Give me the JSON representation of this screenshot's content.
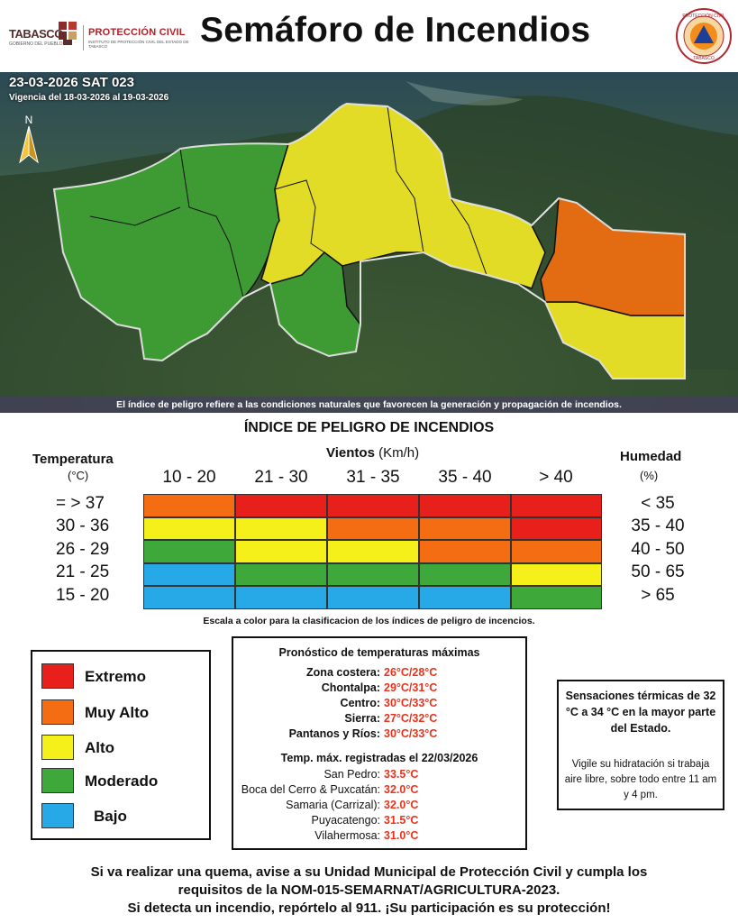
{
  "header": {
    "tabasco_logo": "TABASCO",
    "tabasco_sub": "GOBIERNO DEL PUEBLO",
    "pc_logo": "PROTECCIÓN CIVIL",
    "pc_sub": "INSTITUTO DE PROTECCIÓN CIVIL DEL ESTADO DE TABASCO",
    "title": "Semáforo de Incendios",
    "seal_text": "INSTITUTO DE PROTECCIÓN CIVIL · TABASCO"
  },
  "map": {
    "date_code": "23-03-2026 SAT 023",
    "validity": "Vigencia del 18-03-2026 al 19-03-2026",
    "north": "N",
    "note": "El índice de peligro refiere a las condiciones naturales que favorecen la generación y propagación de incendios."
  },
  "index": {
    "title": "ÍNDICE DE PELIGRO DE INCENDIOS",
    "temp_head": "Temperatura",
    "temp_unit": "(°C)",
    "winds_head_bold": "Vientos",
    "winds_head_unit": "(Km/h)",
    "hum_head": "Humedad",
    "hum_unit": "(%)",
    "wind_cols": [
      "10 - 20",
      "21 - 30",
      "31 - 35",
      "35 - 40",
      "> 40"
    ],
    "rows": [
      {
        "temp": "= > 37",
        "hum": "< 35",
        "cells": [
          "orange",
          "red",
          "red",
          "red",
          "red"
        ]
      },
      {
        "temp": "30 - 36",
        "hum": "35 - 40",
        "cells": [
          "yellow",
          "yellow",
          "orange",
          "orange",
          "red"
        ]
      },
      {
        "temp": "26 - 29",
        "hum": "40 - 50",
        "cells": [
          "green",
          "yellow",
          "yellow",
          "orange",
          "orange"
        ]
      },
      {
        "temp": "21 - 25",
        "hum": "50 - 65",
        "cells": [
          "blue",
          "green",
          "green",
          "green",
          "yellow"
        ]
      },
      {
        "temp": "15 - 20",
        "hum": "> 65",
        "cells": [
          "blue",
          "blue",
          "blue",
          "blue",
          "green"
        ]
      }
    ],
    "scale_note": "Escala a color para la clasificacion de los índices de peligro de incencios."
  },
  "colors": {
    "red": "#e8201c",
    "orange": "#f46d12",
    "yellow": "#f5ef1a",
    "green": "#3ea93a",
    "blue": "#26a9e6"
  },
  "legend": [
    {
      "label": "Extremo",
      "color": "red"
    },
    {
      "label": "Muy Alto",
      "color": "orange"
    },
    {
      "label": "Alto",
      "color": "yellow"
    },
    {
      "label": "Moderado",
      "color": "green"
    },
    {
      "label": "Bajo",
      "color": "blue"
    }
  ],
  "forecast": {
    "title": "Pronóstico de temperaturas máximas",
    "zones": [
      {
        "name": "Zona costera:",
        "value": "26°C/28°C"
      },
      {
        "name": "Chontalpa:",
        "value": "29°C/31°C"
      },
      {
        "name": "Centro:",
        "value": "30°C/33°C"
      },
      {
        "name": "Sierra:",
        "value": "27°C/32°C"
      },
      {
        "name": "Pantanos y Ríos:",
        "value": "30°C/33°C"
      }
    ],
    "recorded_title": "Temp. máx. registradas el 22/03/2026",
    "recorded": [
      {
        "name": "San Pedro:",
        "value": "33.5°C"
      },
      {
        "name": "Boca del Cerro & Puxcatán:",
        "value": "32.0°C"
      },
      {
        "name": "Samaria (Carrizal):",
        "value": "32.0°C"
      },
      {
        "name": "Puyacatengo:",
        "value": "31.5°C"
      },
      {
        "name": "Vilahermosa:",
        "value": "31.0°C"
      }
    ]
  },
  "sensation": {
    "title": "Sensaciones térmicas de 32 °C a 34 °C en la mayor parte del Estado.",
    "body": "Vigile su hidratación si trabaja aire libre, sobre todo entre 11 am y 4 pm."
  },
  "footer": {
    "line1": "Si va realizar una quema, avise a su Unidad Municipal de Protección Civil y cumpla los",
    "line2": "requisitos de la NOM-015-SEMARNAT/AGRICULTURA-2023.",
    "line3": "Si detecta un incendio, repórtelo al 911. ¡Su participación es su protección!"
  }
}
